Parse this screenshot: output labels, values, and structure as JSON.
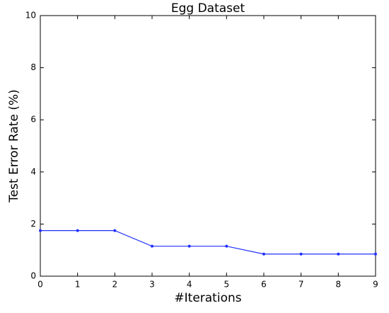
{
  "chart_data": {
    "type": "line",
    "title": "Egg Dataset",
    "x_label": "#Iterations",
    "y_label": "Test Error Rate (%)",
    "x": [
      0,
      1,
      2,
      3,
      4,
      5,
      6,
      7,
      8,
      9
    ],
    "series": [
      {
        "name": "Test Error Rate",
        "color": "#2030ff",
        "values": [
          1.75,
          1.75,
          1.75,
          1.15,
          1.15,
          1.15,
          0.85,
          0.85,
          0.85,
          0.85
        ]
      }
    ],
    "xlim": [
      0,
      9
    ],
    "ylim": [
      0,
      10
    ],
    "xticks": [
      0,
      1,
      2,
      3,
      4,
      5,
      6,
      7,
      8,
      9
    ],
    "yticks": [
      0,
      2,
      4,
      6,
      8,
      10
    ],
    "grid": false
  }
}
